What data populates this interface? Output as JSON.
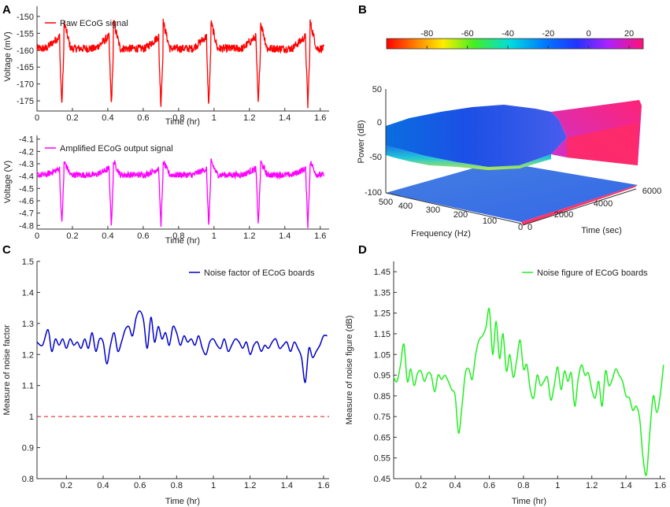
{
  "panels": {
    "A": "A",
    "B": "B",
    "C": "C",
    "D": "D"
  },
  "colors": {
    "raw": "#ff0000",
    "amplified": "#ff00ff",
    "noise_factor": "#0000cc",
    "noise_figure": "#22ee22",
    "reference_line": "#dd4444"
  },
  "chart_data": [
    {
      "id": "A_top",
      "type": "line",
      "xlabel": "Time (hr)",
      "ylabel": "Voltage (mV)",
      "xlim": [
        0,
        1.65
      ],
      "ylim": [
        -178,
        -147
      ],
      "xticks": [
        "0",
        "0.2",
        "0.4",
        "0.6",
        "0.8",
        "1",
        "1.2",
        "1.4",
        "1.6"
      ],
      "yticks": [
        "-150",
        "-155",
        "-160",
        "-165",
        "-170",
        "-175"
      ],
      "series": [
        {
          "name": "Raw ECoG signal",
          "baseline": -159.5,
          "spike_min": -176.5,
          "spike_peak": -151.5,
          "spike_times": [
            0.14,
            0.42,
            0.7,
            0.97,
            1.25,
            1.53
          ]
        }
      ],
      "legend": "top-left"
    },
    {
      "id": "A_bottom",
      "type": "line",
      "xlabel": "Time (hr)",
      "ylabel": "Voltage (V)",
      "xlim": [
        0,
        1.65
      ],
      "ylim": [
        -4.83,
        -4.07
      ],
      "xticks": [
        "0",
        "0.2",
        "0.4",
        "0.6",
        "0.8",
        "1",
        "1.2",
        "1.4",
        "1.6"
      ],
      "yticks": [
        "-4.1",
        "-4.2",
        "-4.3",
        "-4.4",
        "-4.5",
        "-4.6",
        "-4.7",
        "-4.8"
      ],
      "series": [
        {
          "name": "Amplified ECoG output signal",
          "baseline": -4.39,
          "spike_min": -4.8,
          "spike_peak": -4.28,
          "spike_times": [
            0.14,
            0.42,
            0.7,
            0.97,
            1.25,
            1.53
          ]
        }
      ],
      "legend": "top-left"
    },
    {
      "id": "B",
      "type": "surface",
      "colorbar_ticks": [
        "-80",
        "-60",
        "-40",
        "-20",
        "0",
        "20"
      ],
      "zlabel": "Power (dB)",
      "zticks": [
        "50",
        "0",
        "-50",
        "-100"
      ],
      "xlabel": "Frequency (Hz)",
      "xticks": [
        "500",
        "400",
        "300",
        "200",
        "100",
        "0"
      ],
      "ylabel": "Time (sec)",
      "yticks": [
        "0",
        "2000",
        "4000",
        "6000"
      ]
    },
    {
      "id": "C",
      "type": "line",
      "xlabel": "Time (hr)",
      "ylabel": "Measure of noise factor",
      "xlim": [
        0.04,
        1.63
      ],
      "ylim": [
        0.8,
        1.5
      ],
      "xticks": [
        "0.2",
        "0.4",
        "0.6",
        "0.8",
        "1",
        "1.2",
        "1.4",
        "1.6"
      ],
      "yticks": [
        "1.5",
        "1.4",
        "1.3",
        "1.2",
        "1.1",
        "1",
        "0.9",
        "0.8"
      ],
      "reference": 1.0,
      "series": [
        {
          "name": "Noise factor of ECoG boards",
          "x": [
            0.04,
            0.07,
            0.1,
            0.12,
            0.14,
            0.16,
            0.18,
            0.2,
            0.22,
            0.24,
            0.26,
            0.28,
            0.3,
            0.32,
            0.34,
            0.36,
            0.38,
            0.4,
            0.42,
            0.44,
            0.46,
            0.48,
            0.5,
            0.52,
            0.54,
            0.56,
            0.58,
            0.6,
            0.62,
            0.64,
            0.66,
            0.68,
            0.7,
            0.72,
            0.74,
            0.76,
            0.78,
            0.8,
            0.82,
            0.84,
            0.86,
            0.88,
            0.9,
            0.92,
            0.94,
            0.96,
            0.98,
            1.0,
            1.02,
            1.04,
            1.06,
            1.08,
            1.1,
            1.12,
            1.14,
            1.16,
            1.18,
            1.2,
            1.22,
            1.24,
            1.26,
            1.28,
            1.3,
            1.32,
            1.34,
            1.36,
            1.38,
            1.4,
            1.42,
            1.44,
            1.46,
            1.48,
            1.5,
            1.52,
            1.54,
            1.56,
            1.58,
            1.6,
            1.62
          ],
          "values": [
            1.24,
            1.23,
            1.28,
            1.21,
            1.25,
            1.23,
            1.25,
            1.22,
            1.25,
            1.23,
            1.24,
            1.22,
            1.25,
            1.22,
            1.27,
            1.21,
            1.25,
            1.24,
            1.17,
            1.23,
            1.27,
            1.21,
            1.24,
            1.28,
            1.29,
            1.26,
            1.32,
            1.34,
            1.31,
            1.22,
            1.32,
            1.24,
            1.29,
            1.25,
            1.27,
            1.23,
            1.29,
            1.27,
            1.23,
            1.26,
            1.24,
            1.25,
            1.23,
            1.26,
            1.22,
            1.2,
            1.24,
            1.25,
            1.23,
            1.22,
            1.25,
            1.21,
            1.23,
            1.25,
            1.24,
            1.22,
            1.24,
            1.2,
            1.23,
            1.24,
            1.21,
            1.23,
            1.22,
            1.24,
            1.25,
            1.22,
            1.23,
            1.24,
            1.21,
            1.24,
            1.22,
            1.19,
            1.11,
            1.22,
            1.19,
            1.21,
            1.23,
            1.26,
            1.26
          ]
        }
      ],
      "legend": "top-right"
    },
    {
      "id": "D",
      "type": "line",
      "xlabel": "Time (hr)",
      "ylabel": "Measure of noise figure (dB)",
      "xlim": [
        0.04,
        1.63
      ],
      "ylim": [
        0.45,
        1.5
      ],
      "xticks": [
        "0.2",
        "0.4",
        "0.6",
        "0.8",
        "1",
        "1.2",
        "1.4",
        "1.6"
      ],
      "yticks": [
        "1.45",
        "1.35",
        "1.25",
        "1.15",
        "1.05",
        "0.95",
        "0.85",
        "0.75",
        "0.65",
        "0.55",
        "0.45"
      ],
      "series": [
        {
          "name": "Noise figure of ECoG boards",
          "x": [
            0.04,
            0.06,
            0.08,
            0.1,
            0.12,
            0.14,
            0.16,
            0.18,
            0.2,
            0.22,
            0.24,
            0.26,
            0.28,
            0.3,
            0.32,
            0.34,
            0.36,
            0.38,
            0.4,
            0.42,
            0.44,
            0.46,
            0.48,
            0.5,
            0.52,
            0.54,
            0.56,
            0.58,
            0.6,
            0.62,
            0.64,
            0.66,
            0.68,
            0.7,
            0.72,
            0.74,
            0.76,
            0.78,
            0.8,
            0.82,
            0.84,
            0.86,
            0.88,
            0.9,
            0.92,
            0.94,
            0.96,
            0.98,
            1.0,
            1.02,
            1.04,
            1.06,
            1.08,
            1.1,
            1.12,
            1.14,
            1.16,
            1.18,
            1.2,
            1.22,
            1.24,
            1.26,
            1.28,
            1.3,
            1.32,
            1.34,
            1.36,
            1.38,
            1.4,
            1.42,
            1.44,
            1.46,
            1.48,
            1.5,
            1.52,
            1.54,
            1.56,
            1.58,
            1.6,
            1.62
          ],
          "values": [
            0.94,
            0.92,
            1.0,
            1.1,
            0.92,
            0.98,
            0.9,
            0.96,
            0.97,
            0.92,
            0.96,
            0.95,
            0.87,
            0.95,
            0.93,
            0.95,
            0.92,
            0.88,
            0.85,
            0.67,
            0.8,
            0.96,
            0.98,
            0.93,
            1.05,
            1.12,
            1.14,
            1.18,
            1.27,
            1.05,
            1.21,
            1.03,
            1.15,
            0.97,
            1.05,
            0.94,
            1.02,
            1.12,
            0.98,
            1.0,
            0.88,
            0.84,
            0.95,
            0.9,
            0.92,
            0.94,
            0.83,
            0.9,
            0.99,
            0.88,
            0.97,
            0.92,
            0.96,
            0.8,
            0.93,
            1.0,
            0.95,
            0.96,
            0.88,
            0.84,
            0.92,
            0.8,
            0.97,
            0.9,
            0.93,
            0.98,
            0.95,
            0.92,
            0.85,
            0.84,
            0.78,
            0.8,
            0.74,
            0.55,
            0.47,
            0.68,
            0.85,
            0.77,
            0.85,
            1.0
          ]
        }
      ],
      "legend": "top-right"
    }
  ]
}
